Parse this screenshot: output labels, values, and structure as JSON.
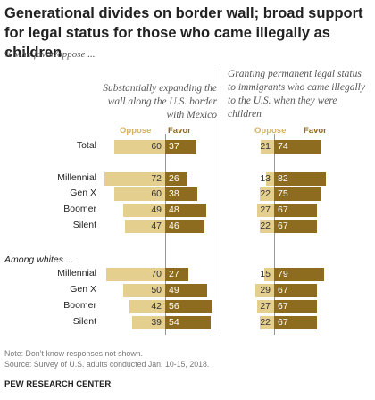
{
  "header": {
    "title": "Generational divides on border wall; broad support for legal status for those who came illegally as children",
    "subtitle": "% who favor/oppose ..."
  },
  "panels": [
    {
      "title": "Substantially expanding the wall along the U.S. border with Mexico",
      "oppose_label": "Oppose",
      "favor_label": "Favor"
    },
    {
      "title": "Granting permanent legal status to immigrants who came illegally to the U.S. when they were children",
      "oppose_label": "Oppose",
      "favor_label": "Favor"
    }
  ],
  "section_label": "Among whites ...",
  "footer": {
    "note": "Note: Don’t know responses not shown.",
    "source": "Source: Survey of U.S. adults conducted Jan. 10-15, 2018.",
    "brand": "PEW RESEARCH CENTER"
  },
  "colors": {
    "oppose": "#e5cf8e",
    "favor": "#8e6c1f"
  },
  "chart_data": {
    "type": "bar",
    "orientation": "horizontal-diverging",
    "categories": [
      "Total",
      "Millennial",
      "Gen X",
      "Boomer",
      "Silent",
      "Millennial",
      "Gen X",
      "Boomer",
      "Silent"
    ],
    "groups": [
      "",
      "",
      "",
      "",
      "",
      "Among whites ...",
      "Among whites ...",
      "Among whites ...",
      "Among whites ..."
    ],
    "panels": [
      {
        "title": "Substantially expanding the wall along the U.S. border with Mexico",
        "series": [
          {
            "name": "Oppose",
            "values": [
              60,
              72,
              60,
              49,
              47,
              70,
              50,
              42,
              39
            ]
          },
          {
            "name": "Favor",
            "values": [
              37,
              26,
              38,
              48,
              46,
              27,
              49,
              56,
              54
            ]
          }
        ]
      },
      {
        "title": "Granting permanent legal status to immigrants who came illegally to the U.S. when they were children",
        "series": [
          {
            "name": "Oppose",
            "values": [
              21,
              13,
              22,
              27,
              22,
              15,
              29,
              27,
              22
            ]
          },
          {
            "name": "Favor",
            "values": [
              74,
              82,
              75,
              67,
              67,
              79,
              67,
              67,
              67
            ]
          }
        ]
      }
    ]
  }
}
